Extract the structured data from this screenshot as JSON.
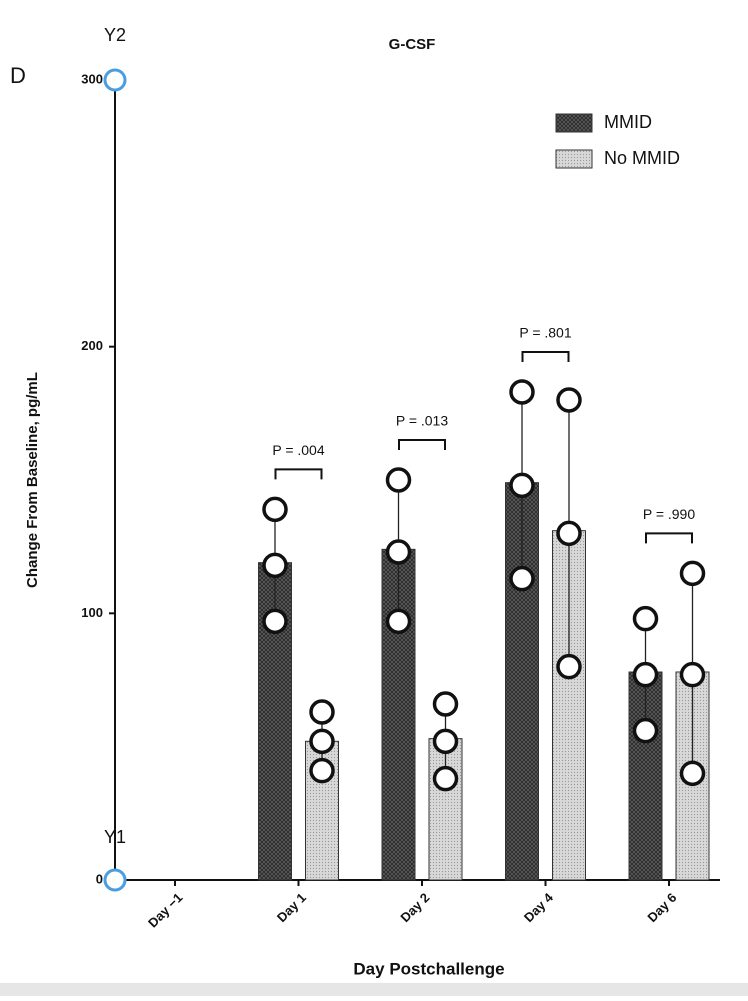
{
  "panel_label": "D",
  "overlay": {
    "y1_label": "Y1",
    "y2_label": "Y2"
  },
  "chart_data": {
    "type": "bar",
    "title": "G-CSF",
    "x_label": "Day Postchallenge",
    "y_label": "Change From Baseline, pg/mL",
    "categories": [
      "Day −1",
      "Day 1",
      "Day 2",
      "Day 4",
      "Day 6"
    ],
    "series": [
      {
        "name": "MMID",
        "color": "#5a5a5a",
        "values": [
          null,
          119,
          124,
          149,
          78
        ],
        "points": [
          null,
          [
            139,
            118,
            97
          ],
          [
            150,
            123,
            97
          ],
          [
            183,
            148,
            113
          ],
          [
            98,
            77,
            56
          ]
        ]
      },
      {
        "name": "No MMID",
        "color": "#d8d8d8",
        "values": [
          null,
          52,
          53,
          131,
          78
        ],
        "points": [
          null,
          [
            63,
            52,
            41
          ],
          [
            66,
            52,
            38
          ],
          [
            180,
            130,
            80
          ],
          [
            115,
            77,
            40
          ]
        ]
      }
    ],
    "p_values": [
      null,
      "P = .004",
      "P = .013",
      "P = .801",
      "P = .990"
    ],
    "ylim": [
      0,
      300
    ],
    "yticks": [
      0,
      100,
      200,
      300
    ],
    "legend": "upper right"
  }
}
